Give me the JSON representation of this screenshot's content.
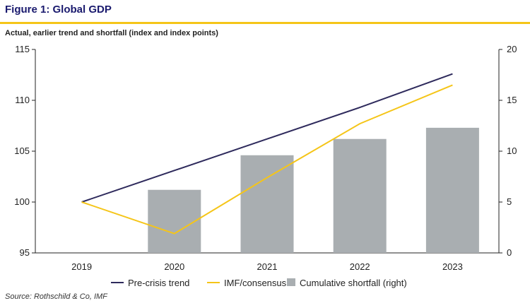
{
  "header": {
    "title": "Figure 1: Global GDP",
    "subtitle": "Actual, earlier trend and shortfall (index and index points)"
  },
  "footer": {
    "source": "Source: Rothschild & Co, IMF"
  },
  "colors": {
    "accent": "#f5c518",
    "title": "#1a1a6e",
    "trend": "#2e2a5c",
    "imf": "#f5c518",
    "bars": "#a9aeb1"
  },
  "chart_data": {
    "type": "bar+line",
    "categories": [
      "2019",
      "2020",
      "2021",
      "2022",
      "2023"
    ],
    "y_left": {
      "ylim": [
        95,
        115
      ],
      "ticks": [
        95,
        100,
        105,
        110,
        115
      ]
    },
    "y_right": {
      "ylim": [
        0,
        20
      ],
      "ticks": [
        0,
        5,
        10,
        15,
        20
      ]
    },
    "series": [
      {
        "name": "Pre-crisis trend",
        "type": "line",
        "axis": "left",
        "values": [
          100,
          103.1,
          106.2,
          109.3,
          112.6
        ]
      },
      {
        "name": "IMF/consensus",
        "type": "line",
        "axis": "left",
        "values": [
          100,
          96.9,
          102.4,
          107.7,
          111.5
        ]
      },
      {
        "name": "Cumulative shortfall (right)",
        "type": "bar",
        "axis": "right",
        "values": [
          null,
          6.2,
          9.6,
          11.2,
          12.3
        ]
      }
    ],
    "legend_position": "bottom",
    "grid": false
  }
}
